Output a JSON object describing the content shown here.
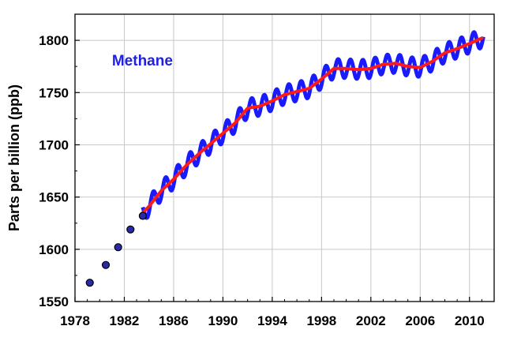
{
  "chart_data": {
    "type": "line",
    "title": "",
    "xlabel": "",
    "ylabel": "Parts per billion (ppb)",
    "xlim": [
      1978,
      2012
    ],
    "ylim": [
      1550,
      1825
    ],
    "x_ticks": [
      "1978",
      "1982",
      "1986",
      "1990",
      "1994",
      "1998",
      "2002",
      "2006",
      "2010"
    ],
    "y_ticks": [
      "1550",
      "1600",
      "1650",
      "1700",
      "1750",
      "1800"
    ],
    "grid": true,
    "annotations": [
      {
        "text": "Methane",
        "x": 1981.0,
        "y": 1776,
        "color": "#1f1fe6"
      }
    ],
    "early_points": {
      "x": [
        1979.2,
        1980.5,
        1981.5,
        1982.5,
        1983.5
      ],
      "y": [
        1568,
        1585,
        1602,
        1619,
        1632
      ],
      "color": "#2a2aa8"
    },
    "trend": {
      "color": "#ff1a1a",
      "x": [
        1983.5,
        1984.0,
        1985.0,
        1986.0,
        1987.0,
        1988.0,
        1989.0,
        1990.0,
        1991.0,
        1992.0,
        1993.0,
        1994.0,
        1995.0,
        1996.0,
        1997.0,
        1998.0,
        1999.0,
        2000.0,
        2001.0,
        2002.0,
        2003.0,
        2004.0,
        2005.0,
        2006.0,
        2007.0,
        2008.0,
        2009.0,
        2010.0,
        2011.0
      ],
      "y": [
        1635,
        1641,
        1656,
        1667,
        1680,
        1691,
        1701,
        1711,
        1721,
        1735,
        1737,
        1742,
        1748,
        1751,
        1754,
        1763,
        1773,
        1773,
        1772,
        1773,
        1777,
        1778,
        1775,
        1774,
        1780,
        1788,
        1792,
        1797,
        1802
      ]
    },
    "monthly": {
      "color": "#1a1aff",
      "seasonal_amplitude": 9
    }
  }
}
